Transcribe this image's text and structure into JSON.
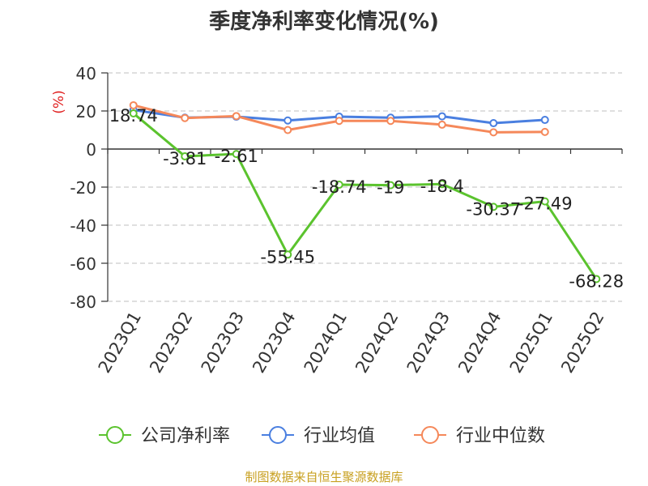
{
  "chart_data": {
    "type": "line",
    "title": "季度净利率变化情况(%)",
    "ylabel": "(%)",
    "xlabel": "",
    "categories": [
      "2023Q1",
      "2023Q2",
      "2023Q3",
      "2023Q4",
      "2024Q1",
      "2024Q2",
      "2024Q3",
      "2024Q4",
      "2025Q1",
      "2025Q2"
    ],
    "ylim": [
      -80,
      40
    ],
    "yticks": [
      -80,
      -60,
      -40,
      -20,
      0,
      20,
      40
    ],
    "grid": true,
    "legend_position": "bottom",
    "series": [
      {
        "name": "公司净利率",
        "color": "#5bc32e",
        "values": [
          18.74,
          -3.81,
          -2.61,
          -55.45,
          -18.74,
          -19,
          -18.4,
          -30.37,
          -27.49,
          -68.28
        ],
        "data_labels": [
          "18.74",
          "-3.81",
          "-2.61",
          "-55.45",
          "-18.74",
          "-19",
          "-18.4",
          "-30.37",
          "-27.49",
          "-68.28"
        ]
      },
      {
        "name": "行业均值",
        "color": "#4a7fe0",
        "values": [
          20.5,
          16.5,
          17.0,
          15.0,
          17.0,
          16.5,
          17.2,
          13.6,
          15.3,
          null
        ]
      },
      {
        "name": "行业中位数",
        "color": "#f5885a",
        "values": [
          23.0,
          16.3,
          17.3,
          10.0,
          14.8,
          14.8,
          12.8,
          8.8,
          9.0,
          null
        ]
      }
    ]
  },
  "footer": "制图数据来自恒生聚源数据库"
}
